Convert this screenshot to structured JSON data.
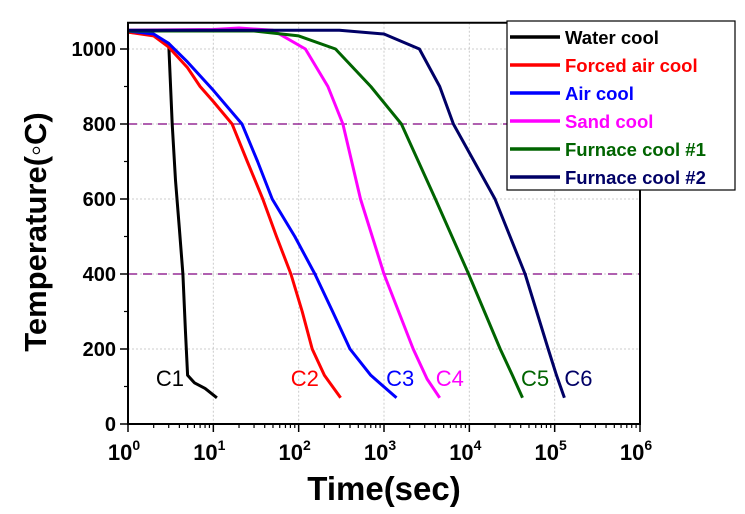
{
  "chart_data": {
    "type": "line",
    "title": "",
    "xlabel": "Time(sec)",
    "ylabel": "Temperature(◦C)",
    "xscale": "log",
    "xlim": [
      1,
      1000000
    ],
    "ylim": [
      0,
      1070
    ],
    "x_ticks": [
      {
        "value": 1,
        "base": "10",
        "exp": "0"
      },
      {
        "value": 10,
        "base": "10",
        "exp": "1"
      },
      {
        "value": 100,
        "base": "10",
        "exp": "2"
      },
      {
        "value": 1000,
        "base": "10",
        "exp": "3"
      },
      {
        "value": 10000,
        "base": "10",
        "exp": "4"
      },
      {
        "value": 100000,
        "base": "10",
        "exp": "5"
      },
      {
        "value": 1000000,
        "base": "10",
        "exp": "6"
      }
    ],
    "y_ticks": [
      "0",
      "200",
      "400",
      "600",
      "800",
      "1000"
    ],
    "grid": true,
    "reference_lines": [
      {
        "y": 400,
        "color": "#800080",
        "style": "dashed"
      },
      {
        "y": 800,
        "color": "#800080",
        "style": "dashed"
      }
    ],
    "legend_position": "top-right",
    "series": [
      {
        "name": "Water cool",
        "color": "#000000",
        "label": "C1",
        "label_at": [
          3.1,
          123
        ],
        "points": [
          [
            1,
            1045
          ],
          [
            2,
            1038
          ],
          [
            3,
            1015
          ],
          [
            3.3,
            800
          ],
          [
            3.6,
            650
          ],
          [
            4.0,
            520
          ],
          [
            4.4,
            400
          ],
          [
            4.7,
            250
          ],
          [
            5.0,
            130
          ],
          [
            6,
            110
          ],
          [
            8,
            95
          ],
          [
            11,
            70
          ]
        ]
      },
      {
        "name": "Forced air cool",
        "color": "#ff0000",
        "label": "C2",
        "label_at": [
          118,
          123
        ],
        "points": [
          [
            1,
            1045
          ],
          [
            2,
            1035
          ],
          [
            3,
            1005
          ],
          [
            5,
            950
          ],
          [
            7,
            900
          ],
          [
            10,
            860
          ],
          [
            16.6,
            800
          ],
          [
            25,
            700
          ],
          [
            38,
            600
          ],
          [
            55,
            500
          ],
          [
            81,
            400
          ],
          [
            110,
            300
          ],
          [
            144,
            200
          ],
          [
            200,
            130
          ],
          [
            310,
            70
          ]
        ]
      },
      {
        "name": "Air cool",
        "color": "#0000ff",
        "label": "C3",
        "label_at": [
          1550,
          123
        ],
        "points": [
          [
            1,
            1048
          ],
          [
            2,
            1040
          ],
          [
            3,
            1015
          ],
          [
            5,
            965
          ],
          [
            10,
            890
          ],
          [
            21.7,
            800
          ],
          [
            33,
            700
          ],
          [
            49,
            600
          ],
          [
            90,
            500
          ],
          [
            155,
            400
          ],
          [
            250,
            300
          ],
          [
            400,
            200
          ],
          [
            700,
            130
          ],
          [
            1400,
            70
          ]
        ]
      },
      {
        "name": "Sand cool",
        "color": "#ff00ff",
        "label": "C4",
        "label_at": [
          5900,
          123
        ],
        "points": [
          [
            1,
            1050
          ],
          [
            10,
            1052
          ],
          [
            20,
            1056
          ],
          [
            50,
            1050
          ],
          [
            120,
            1000
          ],
          [
            220,
            900
          ],
          [
            330,
            800
          ],
          [
            530,
            600
          ],
          [
            1000,
            400
          ],
          [
            2200,
            200
          ],
          [
            3200,
            120
          ],
          [
            4500,
            70
          ]
        ]
      },
      {
        "name": "Furnace cool #1",
        "color": "#006400",
        "label": "C5",
        "label_at": [
          59000,
          123
        ],
        "points": [
          [
            1,
            1048
          ],
          [
            30,
            1048
          ],
          [
            100,
            1035
          ],
          [
            270,
            1000
          ],
          [
            700,
            900
          ],
          [
            1600,
            800
          ],
          [
            4000,
            600
          ],
          [
            9800,
            400
          ],
          [
            23000,
            200
          ],
          [
            32000,
            130
          ],
          [
            42000,
            70
          ]
        ]
      },
      {
        "name": "Furnace cool #2",
        "color": "#000066",
        "label": "C6",
        "label_at": [
          190000,
          123
        ],
        "points": [
          [
            1,
            1050
          ],
          [
            300,
            1050
          ],
          [
            1000,
            1040
          ],
          [
            2600,
            1000
          ],
          [
            4500,
            900
          ],
          [
            6500,
            800
          ],
          [
            20000,
            600
          ],
          [
            45000,
            400
          ],
          [
            84000,
            200
          ],
          [
            105000,
            130
          ],
          [
            130000,
            70
          ]
        ]
      }
    ]
  }
}
